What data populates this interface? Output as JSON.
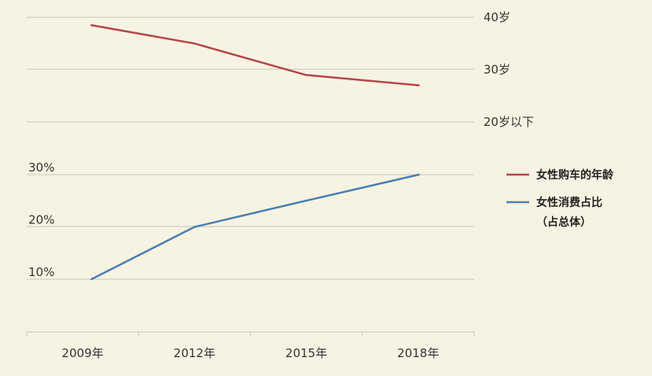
{
  "chart_data": {
    "type": "line",
    "categories": [
      "2009年",
      "2012年",
      "2015年",
      "2018年"
    ],
    "series": [
      {
        "name": "女性购车的年龄",
        "axis": "right",
        "color": "#b5454a",
        "values": [
          38.5,
          35,
          29,
          27
        ]
      },
      {
        "name": "女性消费占比（占总体）",
        "name_lines": [
          "女性消费占比",
          "（占总体）"
        ],
        "axis": "left",
        "color": "#4a7fb4",
        "values": [
          10,
          20,
          25,
          30
        ]
      }
    ],
    "right_axis": {
      "ticks": [
        {
          "value": 40,
          "label": "40岁"
        },
        {
          "value": 30,
          "label": "30岁"
        },
        {
          "value": 20,
          "label": "20岁以下"
        }
      ],
      "ylim": [
        20,
        40
      ]
    },
    "left_axis": {
      "ticks": [
        {
          "value": 30,
          "label": "30%"
        },
        {
          "value": 20,
          "label": "20%"
        },
        {
          "value": 10,
          "label": "10%"
        }
      ],
      "ylim": [
        10,
        30
      ]
    },
    "grid": true,
    "legend_position": "right",
    "title": "",
    "xlabel": "",
    "ylabel": ""
  }
}
